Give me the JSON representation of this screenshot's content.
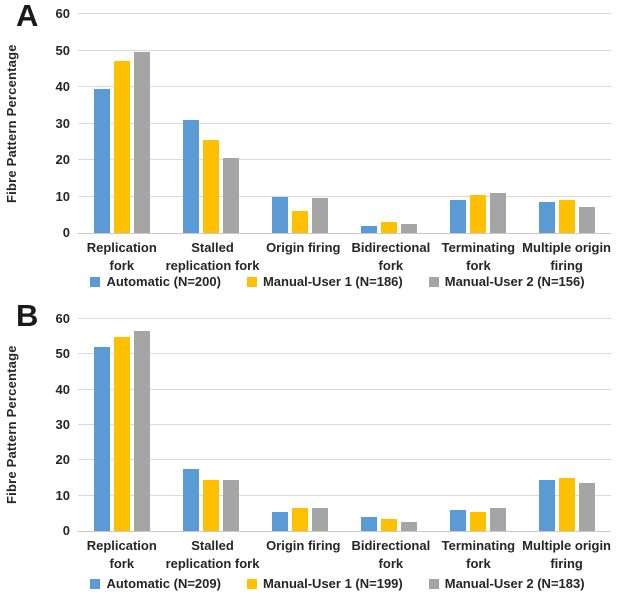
{
  "figure_title": "",
  "text_color": "#262626",
  "gridline_color": "#d9d9d9",
  "chart_data": [
    {
      "type": "bar",
      "panel": "A",
      "title": "",
      "xlabel": "",
      "ylabel": "Fibre Pattern Percentage",
      "ylim": [
        0,
        60
      ],
      "yticks": [
        0,
        10,
        20,
        30,
        40,
        50,
        60
      ],
      "grid": true,
      "legend_position": "bottom",
      "categories": [
        "Replication\nfork",
        "Stalled\nreplication fork",
        "Origin firing",
        "Bidirectional\nfork",
        "Terminating\nfork",
        "Multiple origin\nfiring"
      ],
      "series": [
        {
          "name": "Automatic (N=200)",
          "color": "#5B9BD5",
          "values": [
            39.5,
            31,
            10,
            2,
            9,
            8.5
          ]
        },
        {
          "name": "Manual-User 1 (N=186)",
          "color": "#FFC000",
          "values": [
            47,
            25.5,
            6,
            3,
            10.5,
            9
          ]
        },
        {
          "name": "Manual-User 2 (N=156)",
          "color": "#A5A5A5",
          "values": [
            49.5,
            20.5,
            9.5,
            2.5,
            11,
            7
          ]
        }
      ]
    },
    {
      "type": "bar",
      "panel": "B",
      "title": "",
      "xlabel": "",
      "ylabel": "Fibre Pattern Percentage",
      "ylim": [
        0,
        60
      ],
      "yticks": [
        0,
        10,
        20,
        30,
        40,
        50,
        60
      ],
      "grid": true,
      "legend_position": "bottom",
      "categories": [
        "Replication\nfork",
        "Stalled\nreplication fork",
        "Origin firing",
        "Bidirectional\nfork",
        "Terminating\nfork",
        "Multiple origin\nfiring"
      ],
      "series": [
        {
          "name": "Automatic (N=209)",
          "color": "#5B9BD5",
          "values": [
            52,
            17.5,
            5.5,
            4,
            6,
            14.5
          ]
        },
        {
          "name": "Manual-User 1 (N=199)",
          "color": "#FFC000",
          "values": [
            55,
            14.5,
            6.5,
            3.5,
            5.5,
            15
          ]
        },
        {
          "name": "Manual-User 2 (N=183)",
          "color": "#A5A5A5",
          "values": [
            56.5,
            14.5,
            6.5,
            2.5,
            6.5,
            13.5
          ]
        }
      ]
    }
  ]
}
